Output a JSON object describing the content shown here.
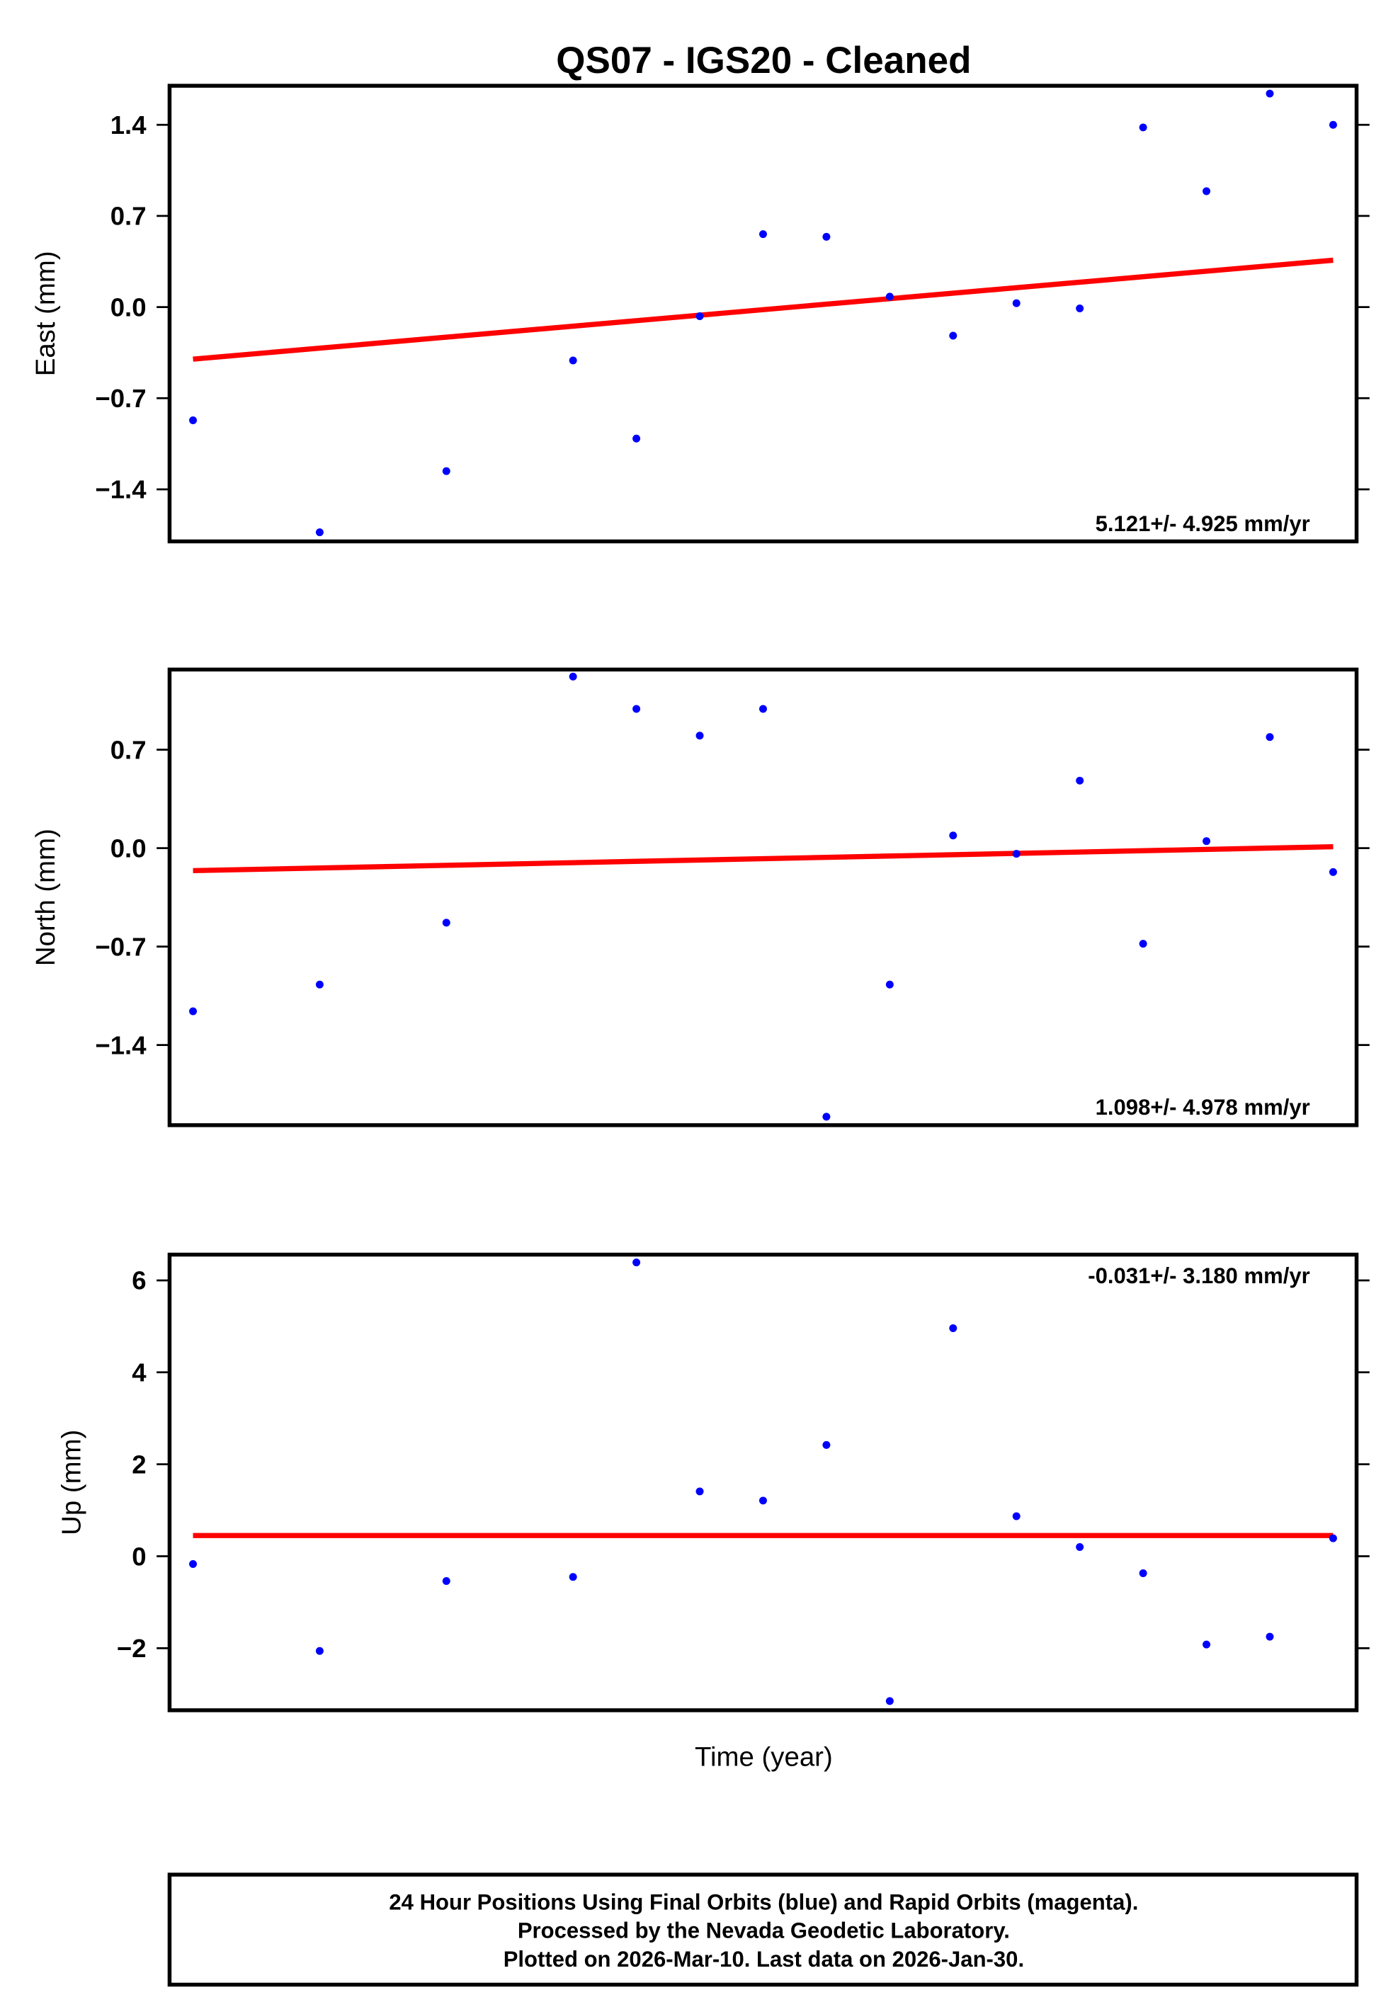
{
  "title": "QS07  - IGS20 - Cleaned",
  "xlabel": "Time (year)",
  "footer": {
    "lines": [
      "24 Hour Positions Using Final Orbits (blue) and Rapid Orbits (magenta).",
      "Processed by the Nevada Geodetic Laboratory.",
      "Plotted on 2026-Mar-10. Last data on 2026-Jan-30."
    ]
  },
  "colors": {
    "points": "#0000ff",
    "trend": "#ff0000",
    "frame": "#000000"
  },
  "chart_data": [
    {
      "type": "scatter",
      "name": "east",
      "ylabel": "East (mm)",
      "rate_label": "5.121+/- 4.925 mm/yr",
      "rate_position": "bottom-right",
      "yticks": [
        1.4,
        0.7,
        0.0,
        -0.7,
        -1.4
      ],
      "ytick_labels": [
        "1.4",
        "0.7",
        "0.0",
        "−0.7",
        "−1.4"
      ],
      "ylim": [
        -1.8,
        1.7
      ],
      "xlim": [
        -0.37,
        18.37
      ],
      "x": [
        0,
        2,
        4,
        6,
        7,
        8,
        9,
        10,
        11,
        12,
        13,
        14,
        15,
        16,
        17,
        18
      ],
      "y": [
        -0.87,
        -1.73,
        -1.26,
        -0.41,
        -1.01,
        -0.07,
        0.56,
        0.54,
        0.08,
        -0.22,
        0.03,
        -0.01,
        1.38,
        0.89,
        1.64,
        1.4
      ],
      "trend": {
        "x": [
          0,
          18
        ],
        "y": [
          -0.4,
          0.36
        ]
      }
    },
    {
      "type": "scatter",
      "name": "north",
      "ylabel": "North (mm)",
      "rate_label": "1.098+/- 4.978 mm/yr",
      "rate_position": "bottom-right",
      "yticks": [
        0.7,
        0.0,
        -0.7,
        -1.4
      ],
      "ytick_labels": [
        "0.7",
        "0.0",
        "−0.7",
        "−1.4"
      ],
      "ylim": [
        -1.97,
        1.27
      ],
      "xlim": [
        -0.37,
        18.37
      ],
      "x": [
        0,
        2,
        4,
        6,
        7,
        8,
        9,
        10,
        11,
        12,
        13,
        14,
        15,
        16,
        17,
        18
      ],
      "y": [
        -1.16,
        -0.97,
        -0.53,
        1.22,
        0.99,
        0.8,
        0.99,
        -1.91,
        -0.97,
        0.09,
        -0.04,
        0.48,
        -0.68,
        0.05,
        0.79,
        -0.17
      ],
      "trend": {
        "x": [
          0,
          18
        ],
        "y": [
          -0.16,
          0.01
        ]
      }
    },
    {
      "type": "scatter",
      "name": "up",
      "ylabel": "Up (mm)",
      "rate_label": "-0.031+/- 3.180 mm/yr",
      "rate_position": "top-right",
      "yticks": [
        6,
        4,
        2,
        0,
        -2
      ],
      "ytick_labels": [
        "6",
        "4",
        "2",
        "0",
        "−2"
      ],
      "ylim": [
        -3.35,
        6.56
      ],
      "xlim": [
        -0.37,
        18.37
      ],
      "x": [
        0,
        2,
        4,
        6,
        7,
        8,
        9,
        10,
        11,
        12,
        13,
        14,
        15,
        16,
        17,
        18
      ],
      "y": [
        -0.17,
        -2.06,
        -0.54,
        -0.45,
        6.39,
        1.41,
        1.21,
        2.42,
        -3.15,
        4.96,
        0.87,
        0.2,
        -0.37,
        -1.92,
        -1.75,
        0.39
      ],
      "trend": {
        "x": [
          0,
          18
        ],
        "y": [
          0.45,
          0.45
        ]
      }
    }
  ]
}
